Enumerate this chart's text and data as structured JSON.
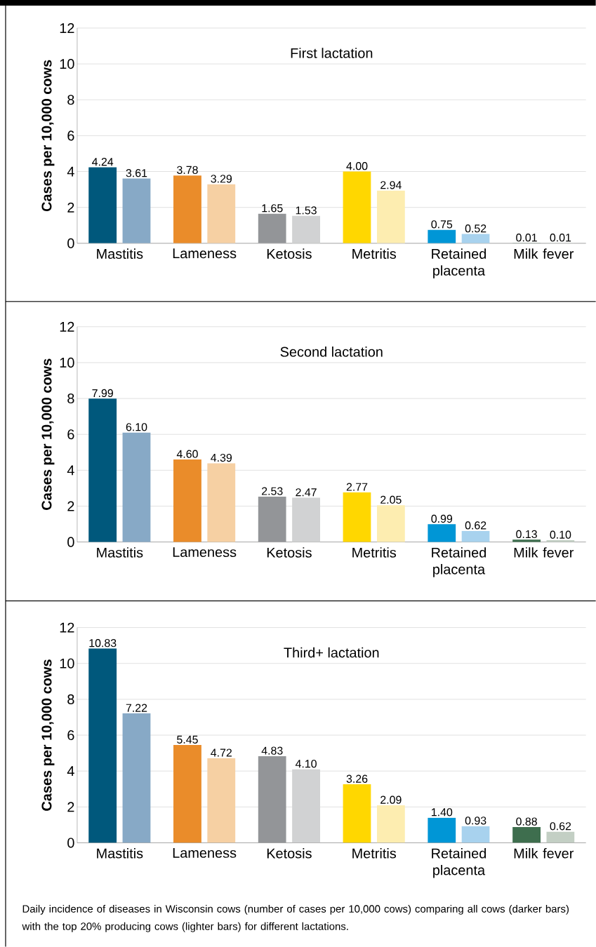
{
  "chart_data": [
    {
      "type": "bar",
      "title": "First lactation",
      "ylabel": "Cases per 10,000 cows",
      "categories": [
        "Mastitis",
        "Lameness",
        "Ketosis",
        "Metritis",
        "Retained placenta",
        "Milk fever"
      ],
      "ylim": [
        0,
        12
      ],
      "yticks": [
        0,
        2,
        4,
        6,
        8,
        10,
        12
      ],
      "grid": "y",
      "series": [
        {
          "values": [
            4.24,
            3.78,
            1.65,
            4.0,
            0.75,
            0.01
          ],
          "value_labels": [
            "4.24",
            "3.78",
            "1.65",
            "4.00",
            "0.75",
            "0.01"
          ],
          "colors": [
            "#00587c",
            "#ea8c2a",
            "#939598",
            "#ffd700",
            "#0096d6",
            "#3e6e4e"
          ]
        },
        {
          "values": [
            3.61,
            3.29,
            1.53,
            2.94,
            0.52,
            0.01
          ],
          "value_labels": [
            "3.61",
            "3.29",
            "1.53",
            "2.94",
            "0.52",
            "0.01"
          ],
          "colors": [
            "#87a9c6",
            "#f6d0a3",
            "#d1d2d3",
            "#fdedb0",
            "#a8d2ee",
            "#c3cfc4"
          ]
        }
      ]
    },
    {
      "type": "bar",
      "title": "Second lactation",
      "ylabel": "Cases per 10,000 cows",
      "categories": [
        "Mastitis",
        "Lameness",
        "Ketosis",
        "Metritis",
        "Retained placenta",
        "Milk fever"
      ],
      "ylim": [
        0,
        12
      ],
      "yticks": [
        0,
        2,
        4,
        6,
        8,
        10,
        12
      ],
      "grid": "y",
      "series": [
        {
          "values": [
            7.99,
            4.6,
            2.53,
            2.77,
            0.99,
            0.13
          ],
          "value_labels": [
            "7.99",
            "4.60",
            "2.53",
            "2.77",
            "0.99",
            "0.13"
          ],
          "colors": [
            "#00587c",
            "#ea8c2a",
            "#939598",
            "#ffd700",
            "#0096d6",
            "#3e6e4e"
          ]
        },
        {
          "values": [
            6.1,
            4.39,
            2.47,
            2.05,
            0.62,
            0.1
          ],
          "value_labels": [
            "6.10",
            "4.39",
            "2.47",
            "2.05",
            "0.62",
            "0.10"
          ],
          "colors": [
            "#87a9c6",
            "#f6d0a3",
            "#d1d2d3",
            "#fdedb0",
            "#a8d2ee",
            "#c3cfc4"
          ]
        }
      ]
    },
    {
      "type": "bar",
      "title": "Third+ lactation",
      "ylabel": "Cases per 10,000 cows",
      "categories": [
        "Mastitis",
        "Lameness",
        "Ketosis",
        "Metritis",
        "Retained placenta",
        "Milk fever"
      ],
      "ylim": [
        0,
        12
      ],
      "yticks": [
        0,
        2,
        4,
        6,
        8,
        10,
        12
      ],
      "grid": "y",
      "series": [
        {
          "values": [
            10.83,
            5.45,
            4.83,
            3.26,
            1.4,
            0.88
          ],
          "value_labels": [
            "10.83",
            "5.45",
            "4.83",
            "3.26",
            "1.40",
            "0.88"
          ],
          "colors": [
            "#00587c",
            "#ea8c2a",
            "#939598",
            "#ffd700",
            "#0096d6",
            "#3e6e4e"
          ]
        },
        {
          "values": [
            7.22,
            4.72,
            4.1,
            2.09,
            0.93,
            0.62
          ],
          "value_labels": [
            "7.22",
            "4.72",
            "4.10",
            "2.09",
            "0.93",
            "0.62"
          ],
          "colors": [
            "#87a9c6",
            "#f6d0a3",
            "#d1d2d3",
            "#fdedb0",
            "#a8d2ee",
            "#c3cfc4"
          ]
        }
      ],
      "annotations": [
        "Daily incidence of diseases in Wisconsin cows (number of cases per 10,000 cows) comparing all cows (darker bars) with the top 20% producing cows (lighter bars) for different lactations."
      ]
    }
  ]
}
